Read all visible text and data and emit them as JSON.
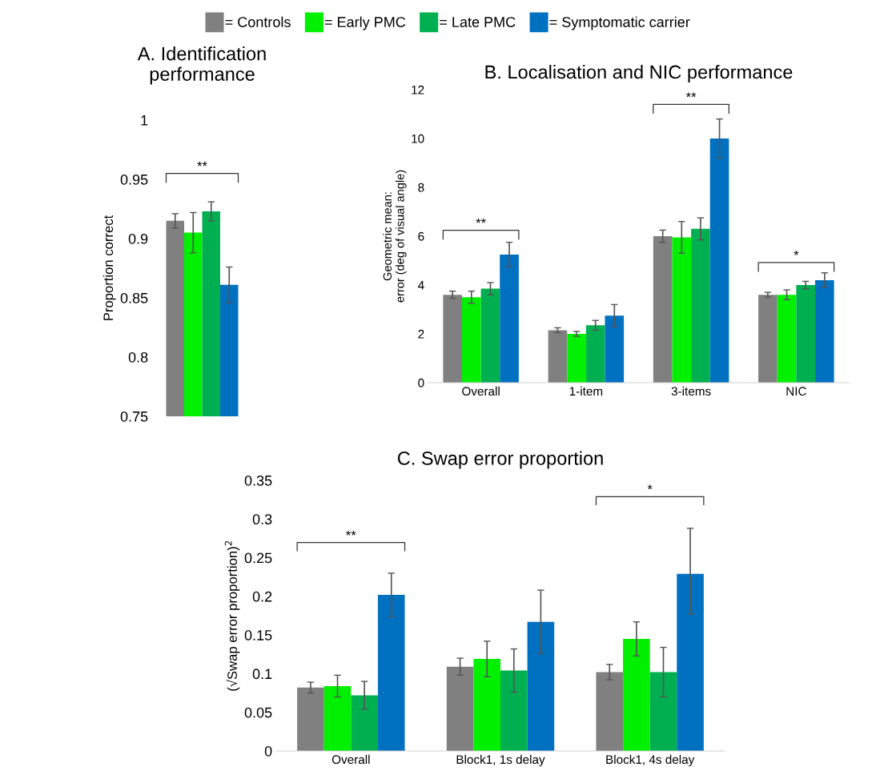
{
  "chart_data": [
    {
      "type": "bar",
      "title": "A. Identification performance",
      "ylabel": "Proportion correct",
      "categories": [
        null
      ],
      "legend": "top",
      "series": [
        {
          "name": "= Controls",
          "color": "#808080",
          "values": [
            0.915
          ],
          "errors": [
            0.006
          ]
        },
        {
          "name": "= Early PMC",
          "color": "#00f000",
          "values": [
            0.905
          ],
          "errors": [
            0.017
          ]
        },
        {
          "name": "= Late PMC",
          "color": "#00b050",
          "values": [
            0.923
          ],
          "errors": [
            0.008
          ]
        },
        {
          "name": "= Symptomatic carrier",
          "color": "#0070c0",
          "values": [
            0.861
          ],
          "errors": [
            0.015
          ]
        }
      ],
      "ylim": [
        0.75,
        1
      ],
      "yticks": [
        0.75,
        0.8,
        0.85,
        0.9,
        0.95,
        {
          "value": 1,
          "label": "1"
        }
      ],
      "annotations": [
        "**"
      ]
    },
    {
      "type": "bar",
      "title": "B. Localisation and NIC performance",
      "ylabel": "Geometric mean:\nerror (deg of visual angle)",
      "categories": [
        "Overall",
        "1-item",
        "3-items",
        "NIC"
      ],
      "series": [
        {
          "color": "#808080",
          "values": [
            3.6,
            2.15,
            6.0,
            3.6
          ],
          "errors": [
            0.15,
            0.1,
            0.25,
            0.1
          ]
        },
        {
          "color": "#00f000",
          "values": [
            3.5,
            2.0,
            5.95,
            3.6
          ],
          "errors": [
            0.25,
            0.1,
            0.65,
            0.2
          ]
        },
        {
          "color": "#00b050",
          "values": [
            3.85,
            2.35,
            6.3,
            4.0
          ],
          "errors": [
            0.25,
            0.2,
            0.45,
            0.15
          ]
        },
        {
          "color": "#0070c0",
          "values": [
            5.25,
            2.75,
            10.0,
            4.2
          ],
          "errors": [
            0.5,
            0.45,
            0.8,
            0.3
          ]
        }
      ],
      "ylim": [
        0,
        12
      ],
      "yticks": [
        0,
        2,
        4,
        6,
        8,
        10,
        12
      ],
      "annotations": [
        "**",
        "**",
        "*"
      ]
    },
    {
      "type": "bar",
      "title": "C. Swap error proportion",
      "ylabel": "(√Swap error proportion)$^{2}$",
      "categories": [
        "Overall",
        "Block1, 1s delay",
        "Block1, 4s delay"
      ],
      "series": [
        {
          "color": "#808080",
          "values": [
            0.082,
            0.109,
            0.102
          ],
          "errors": [
            0.007,
            0.011,
            0.01
          ]
        },
        {
          "color": "#00f000",
          "values": [
            0.084,
            0.119,
            0.145
          ],
          "errors": [
            0.014,
            0.023,
            0.022
          ]
        },
        {
          "color": "#00b050",
          "values": [
            0.072,
            0.104,
            0.102
          ],
          "errors": [
            0.018,
            0.028,
            0.032
          ]
        },
        {
          "color": "#0070c0",
          "values": [
            0.202,
            0.167,
            0.229
          ],
          "errors": [
            0.028,
            0.041,
            [
              0.177,
              0.288
            ]
          ]
        }
      ],
      "ylim": [
        0,
        0.35
      ],
      "yticks": [
        0,
        0.05,
        0.1,
        0.15,
        0.2,
        0.25,
        0.3,
        0.35
      ],
      "annotations": [
        "**",
        "*"
      ]
    }
  ]
}
